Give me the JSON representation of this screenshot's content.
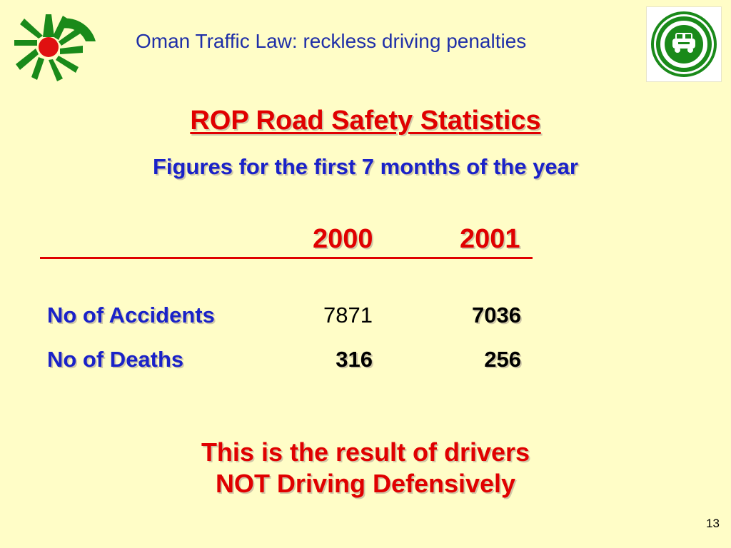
{
  "header": {
    "title": "Oman Traffic Law: reckless driving penalties",
    "left_logo_icon": "green-sunburst-logo-icon",
    "right_logo_icon": "green-car-seal-logo-icon"
  },
  "heading": {
    "title": "ROP Road Safety Statistics",
    "subtitle": "Figures for the first 7 months of the year"
  },
  "table": {
    "columns": [
      "2000",
      "2001"
    ],
    "rows": [
      {
        "label": "No of Accidents",
        "values": [
          "7871",
          "7036"
        ]
      },
      {
        "label": "No of Deaths",
        "values": [
          "316",
          "256"
        ]
      }
    ]
  },
  "message": {
    "line1": "This is the result of drivers",
    "line2": "NOT Driving Defensively"
  },
  "footer": {
    "page_number": "13"
  },
  "colors": {
    "background": "#fffdc7",
    "red": "#e00000",
    "blue": "#1a22c8",
    "header_blue": "#1f2fa8",
    "logo_green": "#1a8a1a"
  }
}
